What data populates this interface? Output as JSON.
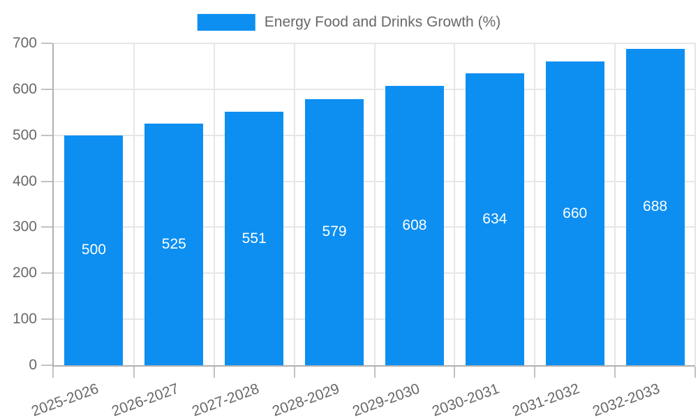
{
  "legend": {
    "label": "Energy Food and Drinks Growth (%)"
  },
  "chart_data": {
    "type": "bar",
    "title": "",
    "legend_label": "Energy Food and Drinks Growth (%)",
    "legend_position": "top",
    "categories": [
      "2025-2026",
      "2026-2027",
      "2027-2028",
      "2028-2029",
      "2029-2030",
      "2030-2031",
      "2031-2032",
      "2032-2033"
    ],
    "values": [
      500,
      525,
      551,
      579,
      608,
      634,
      660,
      688
    ],
    "xlabel": "",
    "ylabel": "",
    "ylim": [
      0,
      700
    ],
    "yticks": [
      0,
      100,
      200,
      300,
      400,
      500,
      600,
      700
    ],
    "grid": true,
    "bar_labels_inside": true,
    "x_label_rotation_deg": -20,
    "colors": {
      "bar": "#0d8ff2",
      "grid": "#e6e6e6",
      "axis": "#b0b0b0",
      "tick": "#c2c2c2",
      "text": "#686868",
      "bar_label": "#ffffff",
      "background": "#ffffff"
    }
  }
}
